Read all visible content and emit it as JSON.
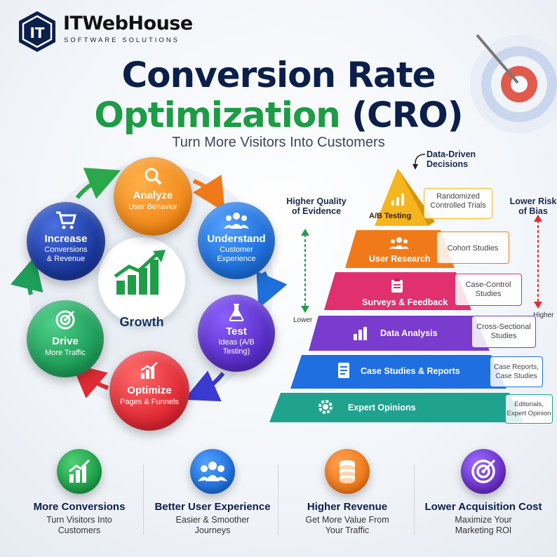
{
  "brand": {
    "name": "ITWebHouse",
    "tagline": "SOFTWARE SOLUTIONS",
    "logo_letters": "IT"
  },
  "title": {
    "line1": "Conversion Rate",
    "line2_part1": "Optimization",
    "line2_part2": "(CRO)"
  },
  "subtitle": "Turn More Visitors Into Customers",
  "cycle": {
    "center_label": "Growth",
    "steps": [
      {
        "title": "Analyze",
        "subtitle": "User Behavior",
        "icon": "magnifier-icon",
        "color": "#f28c1c"
      },
      {
        "title": "Understand",
        "subtitle": "Customer Experience",
        "icon": "users-icon",
        "color": "#1e6fd9"
      },
      {
        "title": "Test",
        "subtitle": "Ideas (A/B Testing)",
        "icon": "flask-icon",
        "color": "#5a2fc7"
      },
      {
        "title": "Optimize",
        "subtitle": "Pages & Funnels",
        "icon": "bar-chart-icon",
        "color": "#e02b35"
      },
      {
        "title": "Drive",
        "subtitle": "More Traffic",
        "icon": "target-icon",
        "color": "#1f9e5a"
      },
      {
        "title": "Increase",
        "subtitle": "Conversions & Revenue",
        "icon": "cart-icon",
        "color": "#1b3a9e"
      }
    ]
  },
  "pyramid": {
    "apex_label": "Data-Driven Decisions",
    "left_axis": {
      "title": "Higher Quality of Evidence",
      "low": "Lower"
    },
    "right_axis": {
      "title": "Lower Risk of Bias",
      "high": "Higher"
    },
    "tiers": [
      {
        "label": "A/B Testing",
        "evidence": "Randomized Controlled Trials",
        "icon": "bar-chart-icon",
        "color": "#f5b51e"
      },
      {
        "label": "User Research",
        "evidence": "Cohort Studies",
        "icon": "users-icon",
        "color": "#f07a1a"
      },
      {
        "label": "Surveys & Feedback",
        "evidence": "Case-Control Studies",
        "icon": "clipboard-icon",
        "color": "#e0306e"
      },
      {
        "label": "Data Analysis",
        "evidence": "Cross-Sectional Studies",
        "icon": "bar-chart-icon",
        "color": "#7a3ccf"
      },
      {
        "label": "Case Studies & Reports",
        "evidence": "Case Reports, Case Studies",
        "icon": "document-icon",
        "color": "#1f6fe0"
      },
      {
        "label": "Expert Opinions",
        "evidence": "Editorials, Expert Opinion",
        "icon": "gear-icon",
        "color": "#1fa38f"
      }
    ]
  },
  "benefits": [
    {
      "title": "More Conversions",
      "desc": "Turn Visitors Into Customers",
      "icon": "bar-chart-icon",
      "color": "#1f9e4a"
    },
    {
      "title": "Better User Experience",
      "desc": "Easier & Smoother Journeys",
      "icon": "users-icon",
      "color": "#1e6fd9"
    },
    {
      "title": "Higher Revenue",
      "desc": "Get More Value From Your Traffic",
      "icon": "coins-icon",
      "color": "#f07a1a"
    },
    {
      "title": "Lower Acquisition Cost",
      "desc": "Maximize Your Marketing ROI",
      "icon": "target-icon",
      "color": "#6a2fc7"
    }
  ]
}
